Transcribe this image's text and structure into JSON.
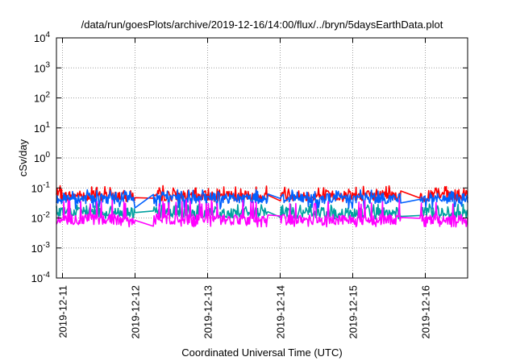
{
  "chart_data": {
    "type": "line",
    "title": "/data/run/goesPlots/archive/2019-12-16/14:00/flux/../bryn/5daysEarthData.plot",
    "xlabel": "Coordinated Universal Time (UTC)",
    "ylabel": "cSv/day",
    "yscale": "log",
    "ylim": [
      0.0001,
      10000
    ],
    "xlim": [
      "2019-12-10T22:00",
      "2019-12-16T14:00"
    ],
    "grid": true,
    "x_ticks": [
      "2019-12-11",
      "2019-12-12",
      "2019-12-13",
      "2019-12-14",
      "2019-12-15",
      "2019-12-16"
    ],
    "y_ticks": [
      {
        "base": "10",
        "exp": "-4",
        "value": 0.0001
      },
      {
        "base": "10",
        "exp": "-3",
        "value": 0.001
      },
      {
        "base": "10",
        "exp": "-2",
        "value": 0.01
      },
      {
        "base": "10",
        "exp": "-1",
        "value": 0.1
      },
      {
        "base": "10",
        "exp": "0",
        "value": 1
      },
      {
        "base": "10",
        "exp": "1",
        "value": 10
      },
      {
        "base": "10",
        "exp": "2",
        "value": 100
      },
      {
        "base": "10",
        "exp": "3",
        "value": 1000
      },
      {
        "base": "10",
        "exp": "4",
        "value": 10000
      }
    ],
    "series": [
      {
        "color": "#ff0000",
        "level": 0.055,
        "min": 0.035,
        "max": 0.12
      },
      {
        "color": "#0060ff",
        "level": 0.045,
        "min": 0.02,
        "max": 0.09
      },
      {
        "color": "#00a0a0",
        "level": 0.015,
        "min": 0.009,
        "max": 0.03
      },
      {
        "color": "#ff00ff",
        "level": 0.009,
        "min": 0.005,
        "max": 0.04
      }
    ],
    "gaps": [
      {
        "start": "2019-12-12T00:00",
        "end": "2019-12-12T06:00"
      },
      {
        "start": "2019-12-13T20:00",
        "end": "2019-12-14T00:00"
      },
      {
        "start": "2019-12-15T16:00",
        "end": "2019-12-15T22:00"
      }
    ]
  }
}
